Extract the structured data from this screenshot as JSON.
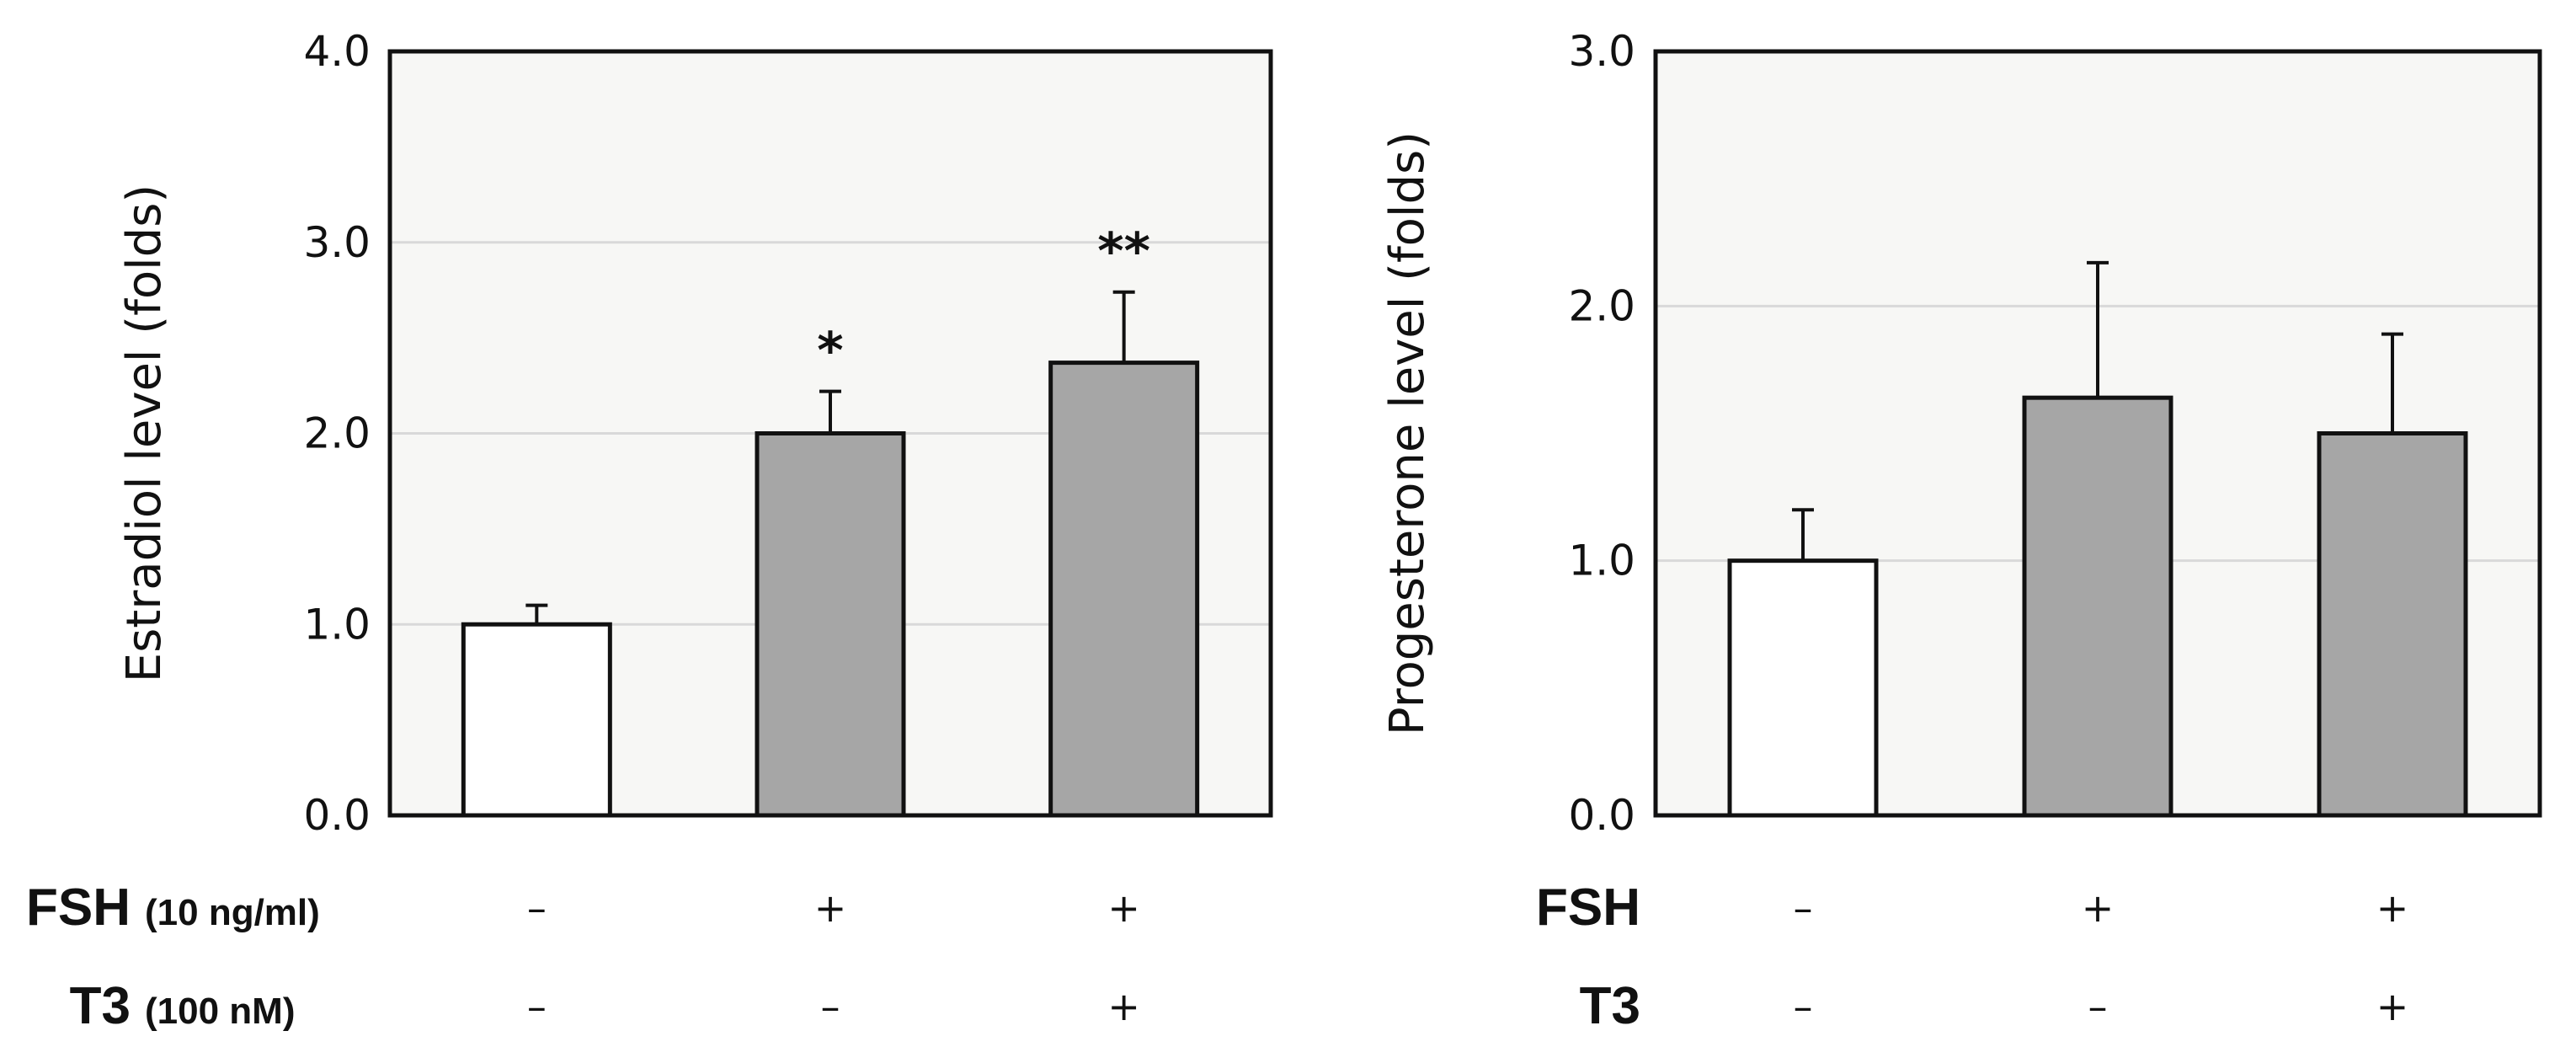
{
  "chart_data": [
    {
      "type": "bar",
      "ylabel": "Estradiol level (folds)",
      "ylim": [
        0,
        4
      ],
      "yticks": [
        "0.0",
        "1.0",
        "2.0",
        "3.0",
        "4.0"
      ],
      "values": [
        1.0,
        2.0,
        2.37
      ],
      "errors": [
        0.1,
        0.22,
        0.37
      ],
      "bar_colors": [
        "#ffffff",
        "#a6a6a6",
        "#a6a6a6"
      ],
      "annotations": [
        "",
        "*",
        "**"
      ],
      "grid": true,
      "plot_bg": "#f7f7f5",
      "rows": [
        {
          "name": "FSH",
          "detail": "(10 ng/ml)",
          "signs": [
            "–",
            "+",
            "+"
          ]
        },
        {
          "name": "T3",
          "detail": "(100 nM)",
          "signs": [
            "–",
            "–",
            "+"
          ]
        }
      ]
    },
    {
      "type": "bar",
      "ylabel": "Progesterone level (folds)",
      "ylim": [
        0,
        3
      ],
      "yticks": [
        "0.0",
        "1.0",
        "2.0",
        "3.0"
      ],
      "values": [
        1.0,
        1.64,
        1.5
      ],
      "errors": [
        0.2,
        0.53,
        0.39
      ],
      "bar_colors": [
        "#ffffff",
        "#a6a6a6",
        "#a6a6a6"
      ],
      "annotations": [
        "",
        "",
        ""
      ],
      "grid": true,
      "plot_bg": "#f7f7f5",
      "rows": [
        {
          "name": "FSH",
          "detail": "",
          "signs": [
            "–",
            "+",
            "+"
          ]
        },
        {
          "name": "T3",
          "detail": "",
          "signs": [
            "–",
            "–",
            "+"
          ]
        }
      ]
    }
  ]
}
